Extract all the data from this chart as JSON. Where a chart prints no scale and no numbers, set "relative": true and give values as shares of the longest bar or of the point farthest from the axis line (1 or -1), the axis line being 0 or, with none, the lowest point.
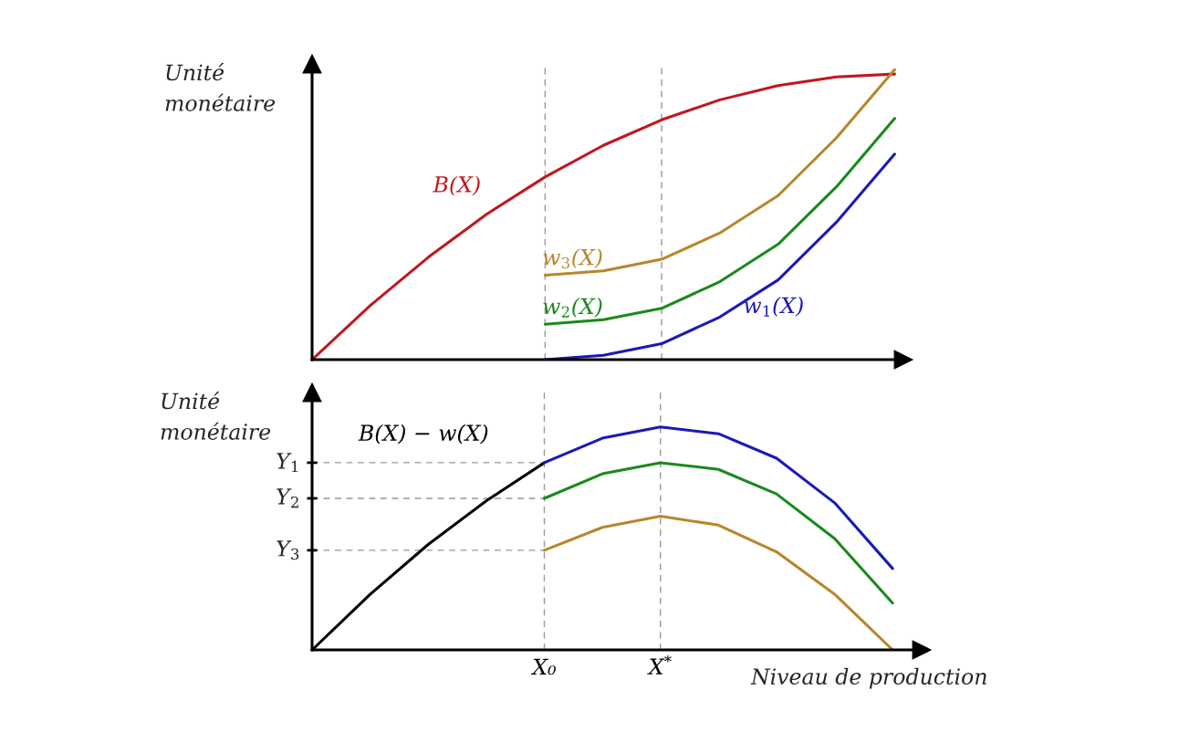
{
  "chart_data": [
    {
      "type": "line",
      "relative": true,
      "ylabel": "Unité\nmonétaire",
      "categories": [
        null,
        null,
        null,
        null,
        null,
        null,
        null,
        null,
        null,
        null,
        null
      ],
      "legend": false,
      "grid": "x",
      "series": [
        {
          "name": "B(X)",
          "color": "#c0171e",
          "values": [
            0,
            0.187,
            0.354,
            0.502,
            0.63,
            0.739,
            0.827,
            0.896,
            0.945,
            0.975,
            0.985
          ]
        },
        {
          "name": "w$_{3}$(X)",
          "color": "#b8862b",
          "values": [
            null,
            null,
            null,
            null,
            0.291,
            0.306,
            0.346,
            0.437,
            0.566,
            0.765,
            1.0
          ]
        },
        {
          "name": "w$_{2}$(X)",
          "color": "#1a8a1a",
          "values": [
            null,
            null,
            null,
            null,
            0.122,
            0.138,
            0.177,
            0.269,
            0.398,
            0.596,
            0.832
          ]
        },
        {
          "name": "w$_{1}$(X)",
          "color": "#1a1ab8",
          "values": [
            null,
            null,
            null,
            null,
            0,
            0.015,
            0.055,
            0.147,
            0.275,
            0.474,
            0.709
          ]
        }
      ]
    },
    {
      "type": "line",
      "relative": true,
      "ylabel": "Unité\nmonétaire",
      "xlabel": "Niveau de production",
      "categories": [
        null,
        null,
        null,
        null,
        "X₀",
        null,
        "X$^{*}$",
        null,
        null,
        null,
        null
      ],
      "legend": false,
      "grid": "x",
      "series": [
        {
          "name": "B(X) − w(X)",
          "color": "#000000",
          "values": [
            0,
            0.249,
            0.473,
            0.669,
            0.84,
            null,
            null,
            null,
            null,
            null,
            null
          ]
        },
        {
          "color": "#1a1ab8",
          "values": [
            null,
            null,
            null,
            null,
            0.84,
            0.95,
            1.0,
            0.97,
            0.86,
            0.66,
            0.365
          ]
        },
        {
          "color": "#1a8a1a",
          "values": [
            null,
            null,
            null,
            null,
            0.68,
            0.79,
            0.84,
            0.81,
            0.7,
            0.5,
            0.21
          ]
        },
        {
          "color": "#b8862b",
          "values": [
            null,
            null,
            null,
            null,
            0.447,
            0.55,
            0.6,
            0.56,
            0.44,
            0.25,
            0.0
          ]
        }
      ],
      "ref_lines": [
        {
          "axis": "y",
          "value": 0.84,
          "label": "Y$_{1}$",
          "color": "#999999",
          "line_style": "dashed"
        },
        {
          "axis": "y",
          "value": 0.68,
          "label": "Y$_{2}$",
          "color": "#999999",
          "line_style": "dashed"
        },
        {
          "axis": "y",
          "value": 0.447,
          "label": "Y$_{3}$",
          "color": "#999999",
          "line_style": "dashed"
        }
      ]
    }
  ]
}
